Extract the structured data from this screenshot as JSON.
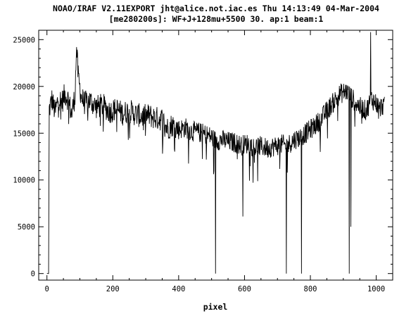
{
  "header": {
    "line1": "NOAO/IRAF V2.11EXPORT jht@alice.not.iac.es Thu 14:13:49 04-Mar-2004",
    "line2": "[me280200s]: WF+J+128mu+5500 30. ap:1 beam:1"
  },
  "chart_data": {
    "type": "line",
    "title": "NOAO/IRAF V2.11EXPORT jht@alice.not.iac.es Thu 14:13:49 04-Mar-2004",
    "subtitle": "[me280200s]: WF+J+128mu+5500 30. ap:1 beam:1",
    "xlabel": "pixel",
    "ylabel": "",
    "xlim": [
      -25,
      1050
    ],
    "ylim": [
      -700,
      26000
    ],
    "xticks": [
      0,
      200,
      400,
      600,
      800,
      1000
    ],
    "yticks": [
      0,
      5000,
      10000,
      15000,
      20000,
      25000
    ],
    "xtick_labels": [
      "0",
      "200",
      "400",
      "600",
      "800",
      "1000"
    ],
    "ytick_labels": [
      "0",
      "5000",
      "10000",
      "15000",
      "20000",
      "25000"
    ],
    "grid": false,
    "series": [
      {
        "points": [
          [
            0,
            0
          ],
          [
            5,
            0
          ],
          [
            7,
            17500
          ],
          [
            15,
            18600
          ],
          [
            25,
            17200
          ],
          [
            35,
            18800
          ],
          [
            45,
            18300
          ],
          [
            55,
            19200
          ],
          [
            65,
            18600
          ],
          [
            75,
            17000
          ],
          [
            85,
            19000
          ],
          [
            90,
            24200
          ],
          [
            95,
            21000
          ],
          [
            105,
            18800
          ],
          [
            115,
            18200
          ],
          [
            130,
            18500
          ],
          [
            150,
            17800
          ],
          [
            170,
            18000
          ],
          [
            190,
            17300
          ],
          [
            210,
            17600
          ],
          [
            230,
            17100
          ],
          [
            250,
            17400
          ],
          [
            270,
            17000
          ],
          [
            290,
            16800
          ],
          [
            310,
            16900
          ],
          [
            330,
            16600
          ],
          [
            350,
            16500
          ],
          [
            365,
            15500
          ],
          [
            380,
            15900
          ],
          [
            400,
            15400
          ],
          [
            420,
            15600
          ],
          [
            440,
            15200
          ],
          [
            460,
            15100
          ],
          [
            480,
            14900
          ],
          [
            500,
            14600
          ],
          [
            512,
            14200
          ],
          [
            530,
            14300
          ],
          [
            550,
            14100
          ],
          [
            570,
            14000
          ],
          [
            590,
            13700
          ],
          [
            610,
            13900
          ],
          [
            630,
            13500
          ],
          [
            650,
            13600
          ],
          [
            670,
            13400
          ],
          [
            690,
            13600
          ],
          [
            710,
            13800
          ],
          [
            730,
            13700
          ],
          [
            750,
            14300
          ],
          [
            770,
            14600
          ],
          [
            790,
            15100
          ],
          [
            810,
            15700
          ],
          [
            830,
            16400
          ],
          [
            850,
            17400
          ],
          [
            870,
            18300
          ],
          [
            890,
            19200
          ],
          [
            910,
            19500
          ],
          [
            930,
            18600
          ],
          [
            950,
            17800
          ],
          [
            970,
            17400
          ],
          [
            985,
            18700
          ],
          [
            1000,
            18200
          ],
          [
            1010,
            17600
          ],
          [
            1020,
            18000
          ],
          [
            1025,
            17800
          ]
        ]
      }
    ],
    "absorption_lines": [
      {
        "x": 512,
        "min": 0
      },
      {
        "x": 595,
        "min": 6100
      },
      {
        "x": 727,
        "min": 0
      },
      {
        "x": 773,
        "min": 0
      },
      {
        "x": 918,
        "min": 0
      },
      {
        "x": 923,
        "min": 5000
      }
    ],
    "emission_spikes": [
      {
        "x": 90,
        "max": 24200
      },
      {
        "x": 983,
        "max": 25800
      }
    ]
  }
}
